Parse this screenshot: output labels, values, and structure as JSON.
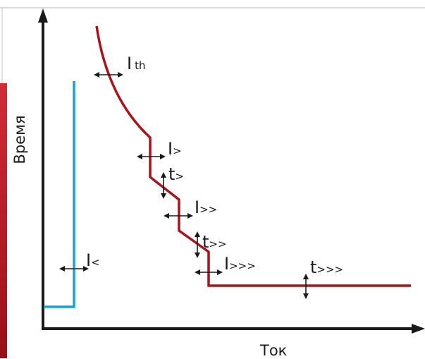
{
  "axes": {
    "x_title": "Ток",
    "y_title": "Время"
  },
  "labels": {
    "i_lt": {
      "main": "I",
      "sub": "<"
    },
    "i_th": {
      "main": "I",
      "sub": "th"
    },
    "i_gt": {
      "main": "I",
      "sub": ">"
    },
    "t_gt": {
      "main": "t",
      "sub": ">"
    },
    "i_gt2": {
      "main": "I",
      "sub": ">>"
    },
    "t_gt2": {
      "main": "t",
      "sub": ">>"
    },
    "i_gt3": {
      "main": "I",
      "sub": ">>>"
    },
    "t_gt3": {
      "main": "t",
      "sub": ">>>"
    }
  },
  "colors": {
    "red_curve": "#a8141c",
    "blue_curve": "#1aa3cf",
    "axis": "#1a1a1a",
    "accent_bar": "#c41e2a"
  }
}
